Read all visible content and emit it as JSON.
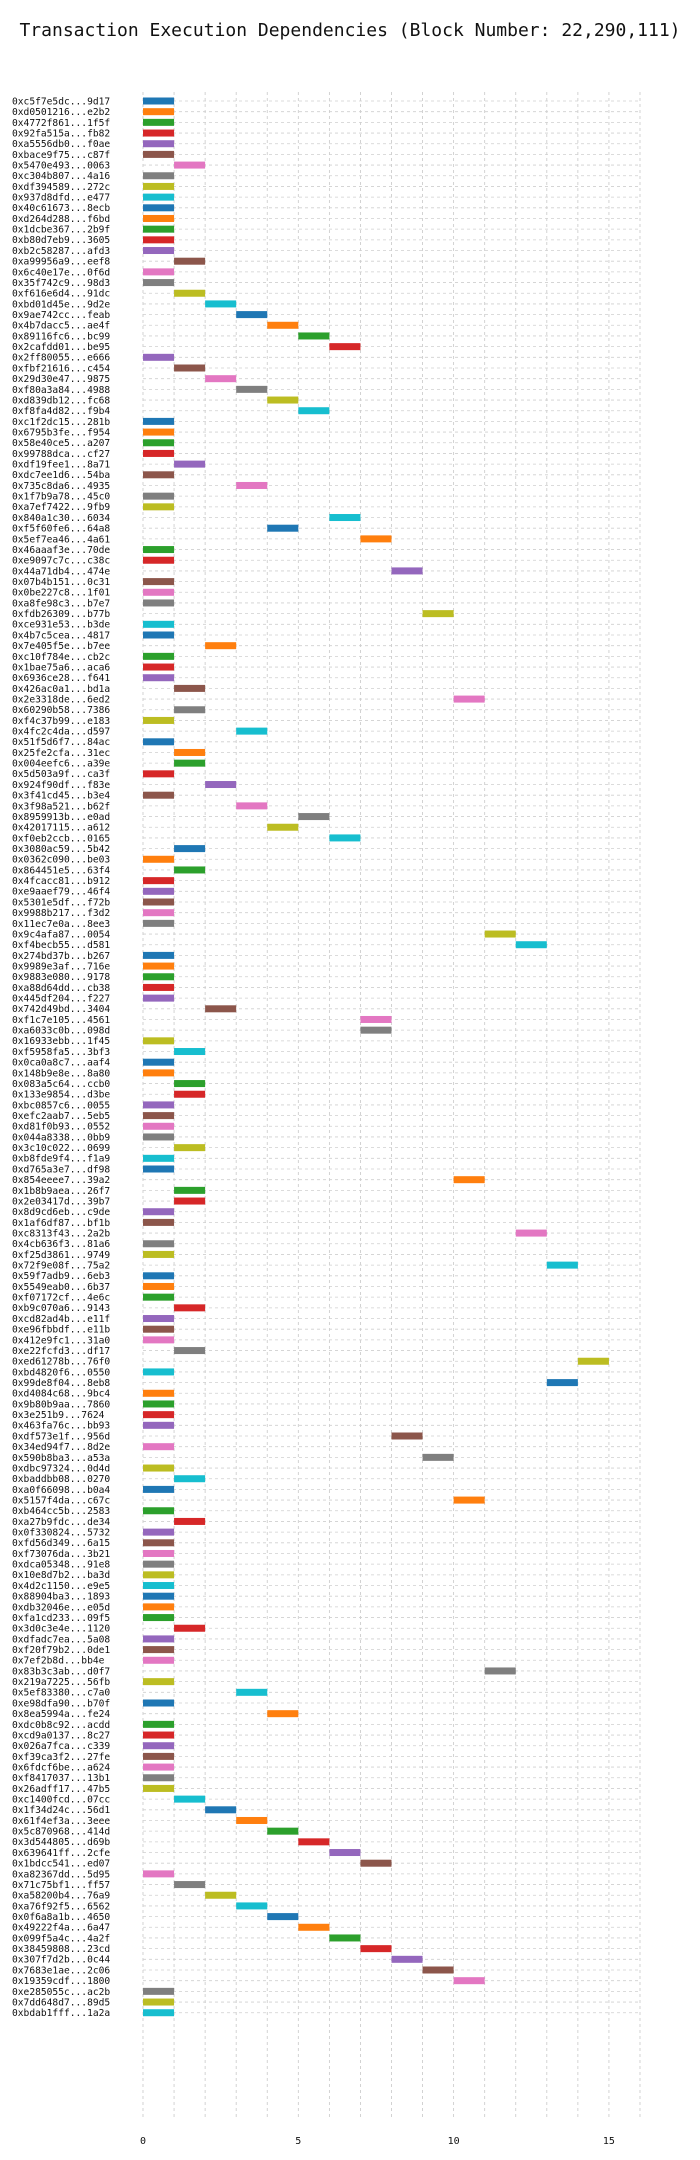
{
  "chart_data": {
    "type": "bar",
    "orientation": "horizontal",
    "title": "Transaction Execution Dependencies (Block Number: 22,290,111)",
    "xlim": [
      0,
      16
    ],
    "xticks": [
      0,
      5,
      10,
      15
    ],
    "grid": true,
    "palette": [
      "#1f77b4",
      "#ff7f0e",
      "#2ca02c",
      "#d62728",
      "#9467bd",
      "#8c564b",
      "#e377c2",
      "#7f7f7f",
      "#bcbd22",
      "#17becf"
    ],
    "transactions": [
      {
        "label": "0xc5f7e5dc...9d17",
        "start": 0,
        "end": 1
      },
      {
        "label": "0xd0501216...e2b2",
        "start": 0,
        "end": 1
      },
      {
        "label": "0x4772f861...1f5f",
        "start": 0,
        "end": 1
      },
      {
        "label": "0x92fa515a...fb82",
        "start": 0,
        "end": 1
      },
      {
        "label": "0xa5556db0...f0ae",
        "start": 0,
        "end": 1
      },
      {
        "label": "0xbace9f75...c87f",
        "start": 0,
        "end": 1
      },
      {
        "label": "0x5470e493...0063",
        "start": 1,
        "end": 2
      },
      {
        "label": "0xc304b807...4a16",
        "start": 0,
        "end": 1
      },
      {
        "label": "0xdf394589...272c",
        "start": 0,
        "end": 1
      },
      {
        "label": "0x937d8dfd...e477",
        "start": 0,
        "end": 1
      },
      {
        "label": "0x40c61673...8ecb",
        "start": 0,
        "end": 1
      },
      {
        "label": "0xd264d288...f6bd",
        "start": 0,
        "end": 1
      },
      {
        "label": "0x1dcbe367...2b9f",
        "start": 0,
        "end": 1
      },
      {
        "label": "0xb80d7eb9...3605",
        "start": 0,
        "end": 1
      },
      {
        "label": "0xb2c58287...afd3",
        "start": 0,
        "end": 1
      },
      {
        "label": "0xa99956a9...eef8",
        "start": 1,
        "end": 2
      },
      {
        "label": "0x6c40e17e...0f6d",
        "start": 0,
        "end": 1
      },
      {
        "label": "0x35f742c9...98d3",
        "start": 0,
        "end": 1
      },
      {
        "label": "0xf616e6d4...91dc",
        "start": 1,
        "end": 2
      },
      {
        "label": "0xbd01d45e...9d2e",
        "start": 2,
        "end": 3
      },
      {
        "label": "0x9ae742cc...feab",
        "start": 3,
        "end": 4
      },
      {
        "label": "0x4b7dacc5...ae4f",
        "start": 4,
        "end": 5
      },
      {
        "label": "0x89116fc6...bc99",
        "start": 5,
        "end": 6
      },
      {
        "label": "0x2cafdd01...be95",
        "start": 6,
        "end": 7
      },
      {
        "label": "0x2ff80055...e666",
        "start": 0,
        "end": 1
      },
      {
        "label": "0xfbf21616...c454",
        "start": 1,
        "end": 2
      },
      {
        "label": "0x29d30e47...9875",
        "start": 2,
        "end": 3
      },
      {
        "label": "0xf80a3a84...4988",
        "start": 3,
        "end": 4
      },
      {
        "label": "0xd839db12...fc68",
        "start": 4,
        "end": 5
      },
      {
        "label": "0xf8fa4d82...f9b4",
        "start": 5,
        "end": 6
      },
      {
        "label": "0xc1f2dc15...281b",
        "start": 0,
        "end": 1
      },
      {
        "label": "0x6795b3fe...f954",
        "start": 0,
        "end": 1
      },
      {
        "label": "0x58e40ce5...a207",
        "start": 0,
        "end": 1
      },
      {
        "label": "0x99788dca...cf27",
        "start": 0,
        "end": 1
      },
      {
        "label": "0xdf19fee1...8a71",
        "start": 1,
        "end": 2
      },
      {
        "label": "0xdc7ee1d6...54ba",
        "start": 0,
        "end": 1
      },
      {
        "label": "0x735c8da6...4935",
        "start": 3,
        "end": 4
      },
      {
        "label": "0x1f7b9a78...45c0",
        "start": 0,
        "end": 1
      },
      {
        "label": "0xa7ef7422...9fb9",
        "start": 0,
        "end": 1
      },
      {
        "label": "0x840a1c30...6034",
        "start": 6,
        "end": 7
      },
      {
        "label": "0xf5f60fe6...64a8",
        "start": 4,
        "end": 5
      },
      {
        "label": "0x5ef7ea46...4a61",
        "start": 7,
        "end": 8
      },
      {
        "label": "0x46aaaf3e...70de",
        "start": 0,
        "end": 1
      },
      {
        "label": "0xe9097c7c...c38c",
        "start": 0,
        "end": 1
      },
      {
        "label": "0x44a71db4...474e",
        "start": 8,
        "end": 9
      },
      {
        "label": "0x07b4b151...0c31",
        "start": 0,
        "end": 1
      },
      {
        "label": "0x0be227c8...1f01",
        "start": 0,
        "end": 1
      },
      {
        "label": "0xa8fe98c3...b7e7",
        "start": 0,
        "end": 1
      },
      {
        "label": "0xfdb26309...b77b",
        "start": 9,
        "end": 10
      },
      {
        "label": "0xce931e53...b3de",
        "start": 0,
        "end": 1
      },
      {
        "label": "0x4b7c5cea...4817",
        "start": 0,
        "end": 1
      },
      {
        "label": "0x7e405f5e...b7ee",
        "start": 2,
        "end": 3
      },
      {
        "label": "0xc10f784e...cb2c",
        "start": 0,
        "end": 1
      },
      {
        "label": "0x1bae75a6...aca6",
        "start": 0,
        "end": 1
      },
      {
        "label": "0x6936ce28...f641",
        "start": 0,
        "end": 1
      },
      {
        "label": "0x426ac0a1...bd1a",
        "start": 1,
        "end": 2
      },
      {
        "label": "0x2e3318de...6ed2",
        "start": 10,
        "end": 11
      },
      {
        "label": "0x60290b58...7386",
        "start": 1,
        "end": 2
      },
      {
        "label": "0xf4c37b99...e183",
        "start": 0,
        "end": 1
      },
      {
        "label": "0x4fc2c4da...d597",
        "start": 3,
        "end": 4
      },
      {
        "label": "0x51f5d6f7...84ac",
        "start": 0,
        "end": 1
      },
      {
        "label": "0x25fe2cfa...31ec",
        "start": 1,
        "end": 2
      },
      {
        "label": "0x004eefc6...a39e",
        "start": 1,
        "end": 2
      },
      {
        "label": "0x5d503a9f...ca3f",
        "start": 0,
        "end": 1
      },
      {
        "label": "0x924f90df...f83e",
        "start": 2,
        "end": 3
      },
      {
        "label": "0x3f41cd45...b3e4",
        "start": 0,
        "end": 1
      },
      {
        "label": "0x3f98a521...b62f",
        "start": 3,
        "end": 4
      },
      {
        "label": "0x8959913b...e0ad",
        "start": 5,
        "end": 6
      },
      {
        "label": "0x42017115...a612",
        "start": 4,
        "end": 5
      },
      {
        "label": "0xf0eb2ccb...0165",
        "start": 6,
        "end": 7
      },
      {
        "label": "0x3080ac59...5b42",
        "start": 1,
        "end": 2
      },
      {
        "label": "0x0362c090...be03",
        "start": 0,
        "end": 1
      },
      {
        "label": "0x864451e5...63f4",
        "start": 1,
        "end": 2
      },
      {
        "label": "0x4fcacc81...b912",
        "start": 0,
        "end": 1
      },
      {
        "label": "0xe9aaef79...46f4",
        "start": 0,
        "end": 1
      },
      {
        "label": "0x5301e5df...f72b",
        "start": 0,
        "end": 1
      },
      {
        "label": "0x9988b217...f3d2",
        "start": 0,
        "end": 1
      },
      {
        "label": "0x11ec7e0a...8ee3",
        "start": 0,
        "end": 1
      },
      {
        "label": "0x9c4afa87...0054",
        "start": 11,
        "end": 12
      },
      {
        "label": "0xf4becb55...d581",
        "start": 12,
        "end": 13
      },
      {
        "label": "0x274bd37b...b267",
        "start": 0,
        "end": 1
      },
      {
        "label": "0x9989e3af...716e",
        "start": 0,
        "end": 1
      },
      {
        "label": "0x9883e080...9178",
        "start": 0,
        "end": 1
      },
      {
        "label": "0xa88d64dd...cb38",
        "start": 0,
        "end": 1
      },
      {
        "label": "0x445df204...f227",
        "start": 0,
        "end": 1
      },
      {
        "label": "0x742d49bd...3404",
        "start": 2,
        "end": 3
      },
      {
        "label": "0xf1c7e105...4561",
        "start": 7,
        "end": 8
      },
      {
        "label": "0xa6033c0b...098d",
        "start": 7,
        "end": 8
      },
      {
        "label": "0x16933ebb...1f45",
        "start": 0,
        "end": 1
      },
      {
        "label": "0xf5958fa5...3bf3",
        "start": 1,
        "end": 2
      },
      {
        "label": "0x0ca0a8c7...aaf4",
        "start": 0,
        "end": 1
      },
      {
        "label": "0x148b9e8e...8a80",
        "start": 0,
        "end": 1
      },
      {
        "label": "0x083a5c64...ccb0",
        "start": 1,
        "end": 2
      },
      {
        "label": "0x133e9854...d3be",
        "start": 1,
        "end": 2
      },
      {
        "label": "0xbc0857c6...0055",
        "start": 0,
        "end": 1
      },
      {
        "label": "0xefc2aab7...5eb5",
        "start": 0,
        "end": 1
      },
      {
        "label": "0xd81f0b93...0552",
        "start": 0,
        "end": 1
      },
      {
        "label": "0x044a8338...0bb9",
        "start": 0,
        "end": 1
      },
      {
        "label": "0x3c10c022...0699",
        "start": 1,
        "end": 2
      },
      {
        "label": "0xb8fde9f4...f1a9",
        "start": 0,
        "end": 1
      },
      {
        "label": "0xd765a3e7...df98",
        "start": 0,
        "end": 1
      },
      {
        "label": "0x854eeee7...39a2",
        "start": 10,
        "end": 11
      },
      {
        "label": "0x1b8b9aea...26f7",
        "start": 1,
        "end": 2
      },
      {
        "label": "0x2e03417d...39b7",
        "start": 1,
        "end": 2
      },
      {
        "label": "0x8d9cd6eb...c9de",
        "start": 0,
        "end": 1
      },
      {
        "label": "0x1af6df87...bf1b",
        "start": 0,
        "end": 1
      },
      {
        "label": "0xc8313f43...2a2b",
        "start": 12,
        "end": 13
      },
      {
        "label": "0x4cb636f3...81a6",
        "start": 0,
        "end": 1
      },
      {
        "label": "0xf25d3861...9749",
        "start": 0,
        "end": 1
      },
      {
        "label": "0x72f9e08f...75a2",
        "start": 13,
        "end": 14
      },
      {
        "label": "0x59f7adb9...6eb3",
        "start": 0,
        "end": 1
      },
      {
        "label": "0x5549eab0...6b37",
        "start": 0,
        "end": 1
      },
      {
        "label": "0xf07172cf...4e6c",
        "start": 0,
        "end": 1
      },
      {
        "label": "0xb9c070a6...9143",
        "start": 1,
        "end": 2
      },
      {
        "label": "0xcd82ad4b...e11f",
        "start": 0,
        "end": 1
      },
      {
        "label": "0xe96fbbdf...e11b",
        "start": 0,
        "end": 1
      },
      {
        "label": "0x412e9fc1...31a0",
        "start": 0,
        "end": 1
      },
      {
        "label": "0xe22fcfd3...df17",
        "start": 1,
        "end": 2
      },
      {
        "label": "0xed61278b...76f0",
        "start": 14,
        "end": 15
      },
      {
        "label": "0xbd4820f6...0550",
        "start": 0,
        "end": 1
      },
      {
        "label": "0x99de8f04...8eb8",
        "start": 13,
        "end": 14
      },
      {
        "label": "0xd4084c68...9bc4",
        "start": 0,
        "end": 1
      },
      {
        "label": "0x9b80b9aa...7860",
        "start": 0,
        "end": 1
      },
      {
        "label": "0x3e251b9...7624",
        "start": 0,
        "end": 1
      },
      {
        "label": "0x463fa76c...bb93",
        "start": 0,
        "end": 1
      },
      {
        "label": "0xdf573e1f...956d",
        "start": 8,
        "end": 9
      },
      {
        "label": "0x34ed94f7...8d2e",
        "start": 0,
        "end": 1
      },
      {
        "label": "0x590b8ba3...a53a",
        "start": 9,
        "end": 10
      },
      {
        "label": "0xdbc97324...0d4d",
        "start": 0,
        "end": 1
      },
      {
        "label": "0xbaddbb08...0270",
        "start": 1,
        "end": 2
      },
      {
        "label": "0xa0f66098...b0a4",
        "start": 0,
        "end": 1
      },
      {
        "label": "0x5157f4da...c67c",
        "start": 10,
        "end": 11
      },
      {
        "label": "0xb464cc5b...2583",
        "start": 0,
        "end": 1
      },
      {
        "label": "0xa27b9fdc...de34",
        "start": 1,
        "end": 2
      },
      {
        "label": "0x0f330824...5732",
        "start": 0,
        "end": 1
      },
      {
        "label": "0xfd56d349...6a15",
        "start": 0,
        "end": 1
      },
      {
        "label": "0xf73076da...3b21",
        "start": 0,
        "end": 1
      },
      {
        "label": "0xdca05348...91e8",
        "start": 0,
        "end": 1
      },
      {
        "label": "0x10e8d7b2...ba3d",
        "start": 0,
        "end": 1
      },
      {
        "label": "0x4d2c1150...e9e5",
        "start": 0,
        "end": 1
      },
      {
        "label": "0x88904ba3...1893",
        "start": 0,
        "end": 1
      },
      {
        "label": "0xdb32046e...e05d",
        "start": 0,
        "end": 1
      },
      {
        "label": "0xfa1cd233...09f5",
        "start": 0,
        "end": 1
      },
      {
        "label": "0x3d0c3e4e...1120",
        "start": 1,
        "end": 2
      },
      {
        "label": "0xdfadc7ea...5a08",
        "start": 0,
        "end": 1
      },
      {
        "label": "0xf20f79b2...0de1",
        "start": 0,
        "end": 1
      },
      {
        "label": "0x7ef2b8d...bb4e",
        "start": 0,
        "end": 1
      },
      {
        "label": "0x83b3c3ab...d0f7",
        "start": 11,
        "end": 12
      },
      {
        "label": "0x219a7225...56fb",
        "start": 0,
        "end": 1
      },
      {
        "label": "0x5ef83380...c7a0",
        "start": 3,
        "end": 4
      },
      {
        "label": "0xe98dfa90...b70f",
        "start": 0,
        "end": 1
      },
      {
        "label": "0x8ea5994a...fe24",
        "start": 4,
        "end": 5
      },
      {
        "label": "0xdc0b8c92...acdd",
        "start": 0,
        "end": 1
      },
      {
        "label": "0xcd9a0137...8c27",
        "start": 0,
        "end": 1
      },
      {
        "label": "0x026a7fca...c339",
        "start": 0,
        "end": 1
      },
      {
        "label": "0xf39ca3f2...27fe",
        "start": 0,
        "end": 1
      },
      {
        "label": "0x6fdcf6be...a624",
        "start": 0,
        "end": 1
      },
      {
        "label": "0xf8417037...13b1",
        "start": 0,
        "end": 1
      },
      {
        "label": "0x26adff17...47b5",
        "start": 0,
        "end": 1
      },
      {
        "label": "0xc1400fcd...07cc",
        "start": 1,
        "end": 2
      },
      {
        "label": "0x1f34d24c...56d1",
        "start": 2,
        "end": 3
      },
      {
        "label": "0x61f4ef3a...3eee",
        "start": 3,
        "end": 4
      },
      {
        "label": "0x5c870968...414d",
        "start": 4,
        "end": 5
      },
      {
        "label": "0x3d544805...d69b",
        "start": 5,
        "end": 6
      },
      {
        "label": "0x639641ff...2cfe",
        "start": 6,
        "end": 7
      },
      {
        "label": "0x1bdcc541...ed07",
        "start": 7,
        "end": 8
      },
      {
        "label": "0xa82367dd...5d95",
        "start": 0,
        "end": 1
      },
      {
        "label": "0x71c75bf1...ff57",
        "start": 1,
        "end": 2
      },
      {
        "label": "0xa58200b4...76a9",
        "start": 2,
        "end": 3
      },
      {
        "label": "0xa76f92f5...6562",
        "start": 3,
        "end": 4
      },
      {
        "label": "0x0f6a8a1b...4650",
        "start": 4,
        "end": 5
      },
      {
        "label": "0x49222f4a...6a47",
        "start": 5,
        "end": 6
      },
      {
        "label": "0x099f5a4c...4a2f",
        "start": 6,
        "end": 7
      },
      {
        "label": "0x38459808...23cd",
        "start": 7,
        "end": 8
      },
      {
        "label": "0x307f7d2b...0c44",
        "start": 8,
        "end": 9
      },
      {
        "label": "0x7683e1ae...2c06",
        "start": 9,
        "end": 10
      },
      {
        "label": "0x19359cdf...1800",
        "start": 10,
        "end": 11
      },
      {
        "label": "0xe285055c...ac2b",
        "start": 0,
        "end": 1
      },
      {
        "label": "0x7dd648d7...89d5",
        "start": 0,
        "end": 1
      },
      {
        "label": "0xbdab1fff...1a2a",
        "start": 0,
        "end": 1
      }
    ]
  }
}
